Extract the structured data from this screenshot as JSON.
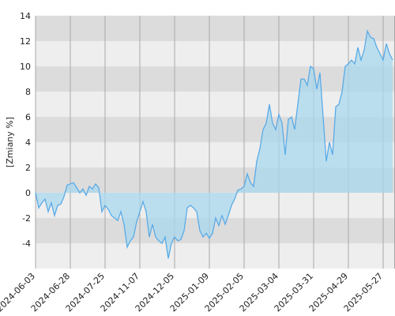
{
  "chart_data": {
    "type": "area",
    "y_label": "[Zmiany %]",
    "ylim": [
      -6,
      14
    ],
    "yticks": [
      -4,
      -2,
      0,
      2,
      4,
      6,
      8,
      10,
      12,
      14
    ],
    "categories": [
      "2024-06-03",
      null,
      null,
      null,
      null,
      null,
      null,
      null,
      null,
      null,
      null,
      "2024-06-28",
      null,
      null,
      null,
      null,
      null,
      null,
      null,
      null,
      null,
      null,
      "2024-07-25",
      null,
      null,
      null,
      null,
      null,
      null,
      null,
      null,
      null,
      null,
      "2024-11-07",
      null,
      null,
      null,
      null,
      null,
      null,
      null,
      null,
      null,
      null,
      "2024-12-05",
      null,
      null,
      null,
      null,
      null,
      null,
      null,
      null,
      null,
      null,
      "2025-01-09",
      null,
      null,
      null,
      null,
      null,
      null,
      null,
      null,
      null,
      null,
      "2025-02-05",
      null,
      null,
      null,
      null,
      null,
      null,
      null,
      null,
      null,
      null,
      "2025-03-04",
      null,
      null,
      null,
      null,
      null,
      null,
      null,
      null,
      null,
      null,
      "2025-03-31",
      null,
      null,
      null,
      null,
      null,
      null,
      null,
      null,
      null,
      null,
      "2025-04-29",
      null,
      null,
      null,
      null,
      null,
      null,
      null,
      null,
      null,
      null,
      "2025-05-27",
      null,
      null,
      null
    ],
    "series": [
      {
        "color": "#5aabe6",
        "fill": "#a9d8ee",
        "values": [
          0,
          -1.2,
          -0.8,
          -0.5,
          -1.5,
          -0.8,
          -1.8,
          -1,
          -0.9,
          -0.3,
          0.6,
          0.7,
          0.8,
          0.4,
          0,
          0.3,
          -0.2,
          0.5,
          0.3,
          0.7,
          0.4,
          -1.5,
          -1,
          -1.3,
          -1.8,
          -2,
          -2.2,
          -1.5,
          -2.5,
          -4.3,
          -3.8,
          -3.5,
          -2.3,
          -1.5,
          -0.7,
          -1.5,
          -3.5,
          -2.5,
          -3.5,
          -3.8,
          -4,
          -3.5,
          -5.2,
          -4,
          -3.5,
          -3.8,
          -3.7,
          -3,
          -1.2,
          -1,
          -1.2,
          -1.5,
          -3,
          -3.5,
          -3.2,
          -3.6,
          -3.2,
          -2,
          -2.6,
          -1.8,
          -2.5,
          -1.8,
          -1,
          -0.5,
          0.2,
          0.3,
          0.5,
          1.5,
          0.8,
          0.5,
          2.5,
          3.5,
          5,
          5.5,
          7,
          5.5,
          5,
          6.2,
          5.5,
          3,
          5.8,
          6,
          5,
          7,
          9,
          9,
          8.5,
          10,
          9.8,
          8.2,
          9.5,
          6,
          2.5,
          4,
          3,
          6.8,
          7,
          8,
          10,
          10.2,
          10.5,
          10.2,
          11.5,
          10.5,
          11.3,
          12.8,
          12.3,
          12.2,
          11.5,
          11,
          10.5,
          11.8,
          11,
          10.5
        ]
      }
    ]
  }
}
